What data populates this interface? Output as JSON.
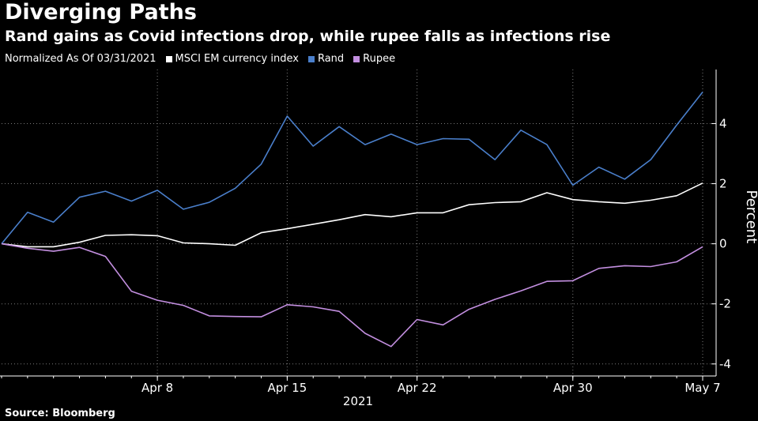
{
  "title": "Diverging Paths",
  "subtitle": "Rand gains as Covid infections drop, while rupee falls as infections rise",
  "legend_note": "Normalized As Of 03/31/2021",
  "source": "Source: Bloomberg",
  "chart_data": {
    "type": "line",
    "title": "Diverging Paths",
    "subtitle": "Rand gains as Covid infections drop, while rupee falls as infections rise",
    "xlabel": "2021",
    "ylabel": "Percent",
    "ylim": [
      -4.4,
      5.8
    ],
    "yticks": [
      -4,
      -2,
      0,
      2,
      4
    ],
    "ytick_labels": [
      "-4",
      "-2",
      "0",
      "2",
      "4"
    ],
    "x": [
      "Mar 31",
      "Apr 1",
      "Apr 2",
      "Apr 5",
      "Apr 6",
      "Apr 7",
      "Apr 8",
      "Apr 9",
      "Apr 12",
      "Apr 13",
      "Apr 14",
      "Apr 15",
      "Apr 16",
      "Apr 19",
      "Apr 20",
      "Apr 21",
      "Apr 22",
      "Apr 23",
      "Apr 26",
      "Apr 27",
      "Apr 28",
      "Apr 29",
      "Apr 30",
      "May 3",
      "May 4",
      "May 5",
      "May 6",
      "May 7"
    ],
    "xticks": [
      {
        "label": "Apr 8",
        "at": "Apr 8"
      },
      {
        "label": "Apr 15",
        "at": "Apr 15"
      },
      {
        "label": "Apr 22",
        "at": "Apr 22"
      },
      {
        "label": "Apr 30",
        "at": "Apr 30"
      },
      {
        "label": "May 7",
        "at": "May 7"
      }
    ],
    "series": [
      {
        "name": "MSCI EM currency index",
        "color": "#ffffff",
        "values": [
          0,
          -0.1,
          -0.1,
          0.05,
          0.28,
          0.3,
          0.27,
          0.03,
          0.0,
          -0.05,
          0.37,
          0.5,
          0.65,
          0.8,
          0.97,
          0.9,
          1.03,
          1.03,
          1.3,
          1.37,
          1.4,
          1.7,
          1.47,
          1.4,
          1.35,
          1.45,
          1.6,
          2.02
        ]
      },
      {
        "name": "Rand",
        "color": "#4a7fcb",
        "values": [
          0,
          1.05,
          0.72,
          1.55,
          1.75,
          1.42,
          1.78,
          1.15,
          1.38,
          1.85,
          2.65,
          4.25,
          3.25,
          3.9,
          3.3,
          3.65,
          3.3,
          3.5,
          3.48,
          2.8,
          3.78,
          3.3,
          1.95,
          2.55,
          2.15,
          2.8,
          3.95,
          5.05
        ]
      },
      {
        "name": "Rupee",
        "color": "#c38fe0",
        "values": [
          0,
          -0.15,
          -0.25,
          -0.12,
          -0.42,
          -1.58,
          -1.88,
          -2.05,
          -2.4,
          -2.42,
          -2.43,
          -2.03,
          -2.1,
          -2.25,
          -2.98,
          -3.42,
          -2.52,
          -2.7,
          -2.18,
          -1.85,
          -1.57,
          -1.25,
          -1.23,
          -0.82,
          -0.73,
          -0.76,
          -0.6,
          -0.1
        ]
      }
    ]
  }
}
